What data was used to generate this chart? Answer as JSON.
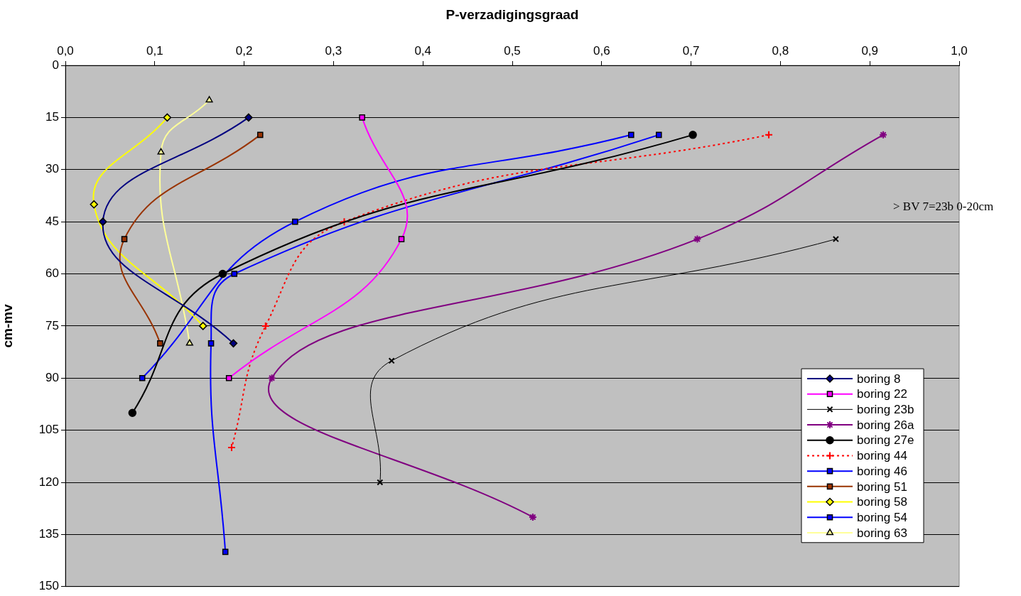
{
  "chart_data": {
    "type": "line",
    "xlabel": "P-verzadigingsgraad",
    "ylabel": "cm-mv",
    "xlim": [
      0,
      1
    ],
    "xticks": [
      {
        "value": 0,
        "label": "0,0"
      },
      {
        "value": 0.1,
        "label": "0,1"
      },
      {
        "value": 0.2,
        "label": "0,2"
      },
      {
        "value": 0.3,
        "label": "0,3"
      },
      {
        "value": 0.4,
        "label": "0,4"
      },
      {
        "value": 0.5,
        "label": "0,5"
      },
      {
        "value": 0.6,
        "label": "0,6"
      },
      {
        "value": 0.7,
        "label": "0,7"
      },
      {
        "value": 0.8,
        "label": "0,8"
      },
      {
        "value": 0.9,
        "label": "0,9"
      },
      {
        "value": 1,
        "label": "1,0"
      }
    ],
    "ylim": [
      150,
      0
    ],
    "yticks": [
      0,
      15,
      30,
      45,
      60,
      75,
      90,
      105,
      120,
      135,
      150
    ],
    "grid": "y",
    "legend": "bottom right",
    "line_style": "solid",
    "annotations": [
      "> BV 7=23b 0-20cm"
    ],
    "series": [
      {
        "name": "boring 8",
        "color": "#000080",
        "marker": "diamond",
        "x": [
          0.205,
          0.042,
          0.188
        ],
        "values": [
          15,
          45,
          80
        ]
      },
      {
        "name": "boring 22",
        "color": "#ff00ff",
        "marker": "square",
        "x": [
          0.332,
          0.376,
          0.183
        ],
        "values": [
          15,
          50,
          90
        ]
      },
      {
        "name": "boring 23b",
        "color": "#000000",
        "marker": "x",
        "x": [
          0.862,
          0.365,
          0.352
        ],
        "values": [
          50,
          85,
          120
        ]
      },
      {
        "name": "boring 26a",
        "color": "#800080",
        "marker": "cross",
        "x": [
          0.915,
          0.707,
          0.231,
          0.523
        ],
        "values": [
          20,
          50,
          90,
          130
        ]
      },
      {
        "name": "boring 27e",
        "color": "#000000",
        "marker": "circle",
        "x": [
          0.702,
          0.176,
          0.075
        ],
        "values": [
          20,
          60,
          100
        ]
      },
      {
        "name": "boring 44",
        "color": "#ff0000",
        "marker": "plus",
        "line_style": "dotted",
        "x": [
          0.787,
          0.312,
          0.224,
          0.186
        ],
        "values": [
          20,
          45,
          75,
          110
        ]
      },
      {
        "name": "boring 46",
        "color": "#0000ff",
        "marker": "square",
        "x": [
          0.664,
          0.189,
          0.163,
          0.179
        ],
        "values": [
          20,
          60,
          80,
          140
        ]
      },
      {
        "name": "boring 51",
        "color": "#993300",
        "marker": "square",
        "x": [
          0.218,
          0.066,
          0.106
        ],
        "values": [
          20,
          50,
          80
        ]
      },
      {
        "name": "boring 58",
        "color": "#ffff00",
        "marker": "diamond",
        "x": [
          0.114,
          0.032,
          0.154
        ],
        "values": [
          15,
          40,
          75
        ]
      },
      {
        "name": "boring 54",
        "color": "#0000ff",
        "marker": "square",
        "x": [
          0.633,
          0.257,
          0.086
        ],
        "values": [
          20,
          45,
          90
        ]
      },
      {
        "name": "boring 63",
        "color": "#ffff99",
        "marker": "triangle",
        "x": [
          0.161,
          0.107,
          0.139
        ],
        "values": [
          10,
          25,
          80
        ]
      }
    ]
  }
}
